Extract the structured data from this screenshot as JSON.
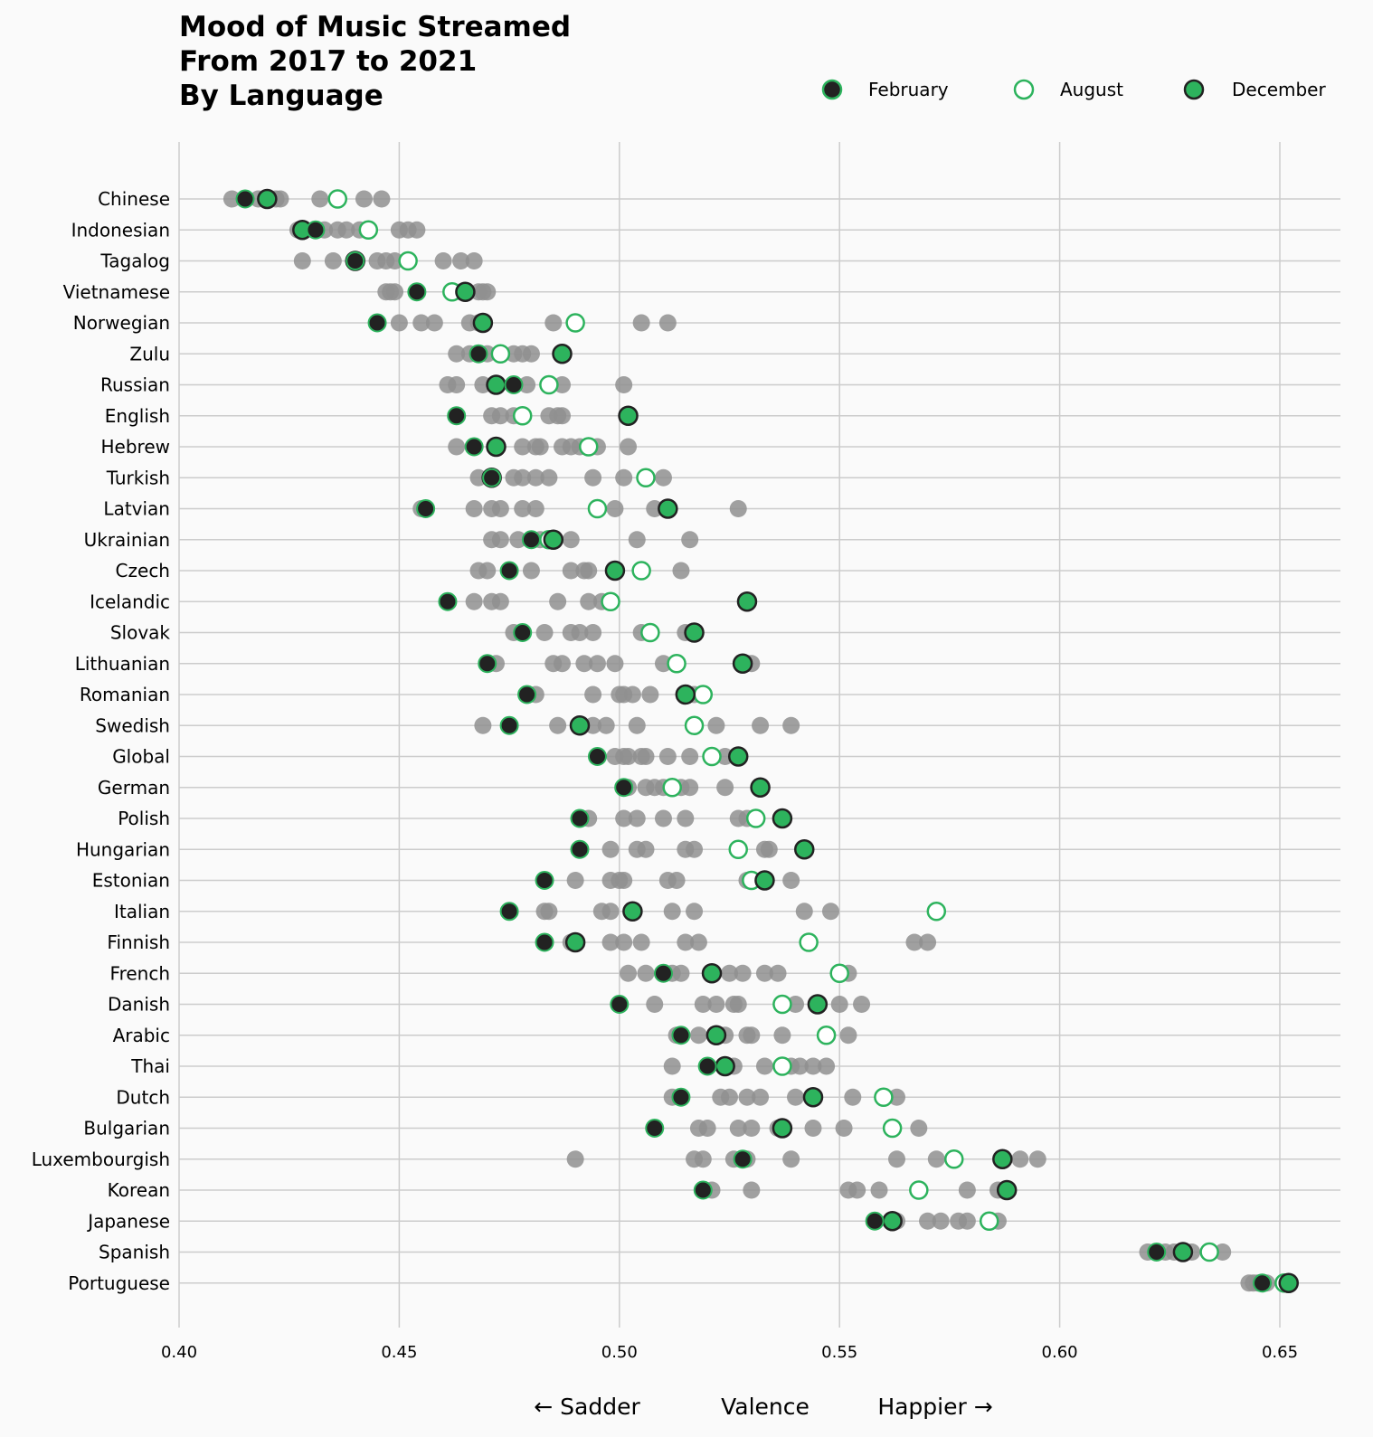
{
  "chart_data": {
    "type": "scatter",
    "title": [
      "Mood of Music Streamed",
      "From 2017 to 2021",
      "By Language"
    ],
    "xlabel": [
      "← Sadder",
      "Valence",
      "Happier →"
    ],
    "xlim": [
      0.4,
      0.665
    ],
    "xticks": [
      "0.40",
      "0.45",
      "0.50",
      "0.55",
      "0.60",
      "0.65"
    ],
    "xtick_values": [
      0.4,
      0.45,
      0.5,
      0.55,
      0.6,
      0.65
    ],
    "grid": true,
    "legend_position": "top-right",
    "legend": [
      {
        "name": "February",
        "style": "dark-fill-green-edge"
      },
      {
        "name": "August",
        "style": "hollow-green"
      },
      {
        "name": "December",
        "style": "green-fill-dark-edge"
      }
    ],
    "colors": {
      "green": "#2db35d",
      "dark": "#222222",
      "gray": "#8f8f8f",
      "grid": "#cccccc",
      "background": "#fafafa"
    },
    "languages": [
      {
        "name": "Chinese",
        "feb": 0.415,
        "aug": 0.436,
        "dec": 0.42,
        "others": [
          0.412,
          0.418,
          0.422,
          0.423,
          0.432,
          0.442,
          0.446
        ]
      },
      {
        "name": "Indonesian",
        "feb": 0.431,
        "aug": 0.443,
        "dec": 0.428,
        "others": [
          0.427,
          0.433,
          0.436,
          0.438,
          0.441,
          0.45,
          0.452,
          0.454
        ]
      },
      {
        "name": "Tagalog",
        "feb": 0.44,
        "aug": 0.452,
        "dec": 0.44,
        "others": [
          0.428,
          0.435,
          0.445,
          0.447,
          0.449,
          0.46,
          0.464,
          0.467
        ]
      },
      {
        "name": "Vietnamese",
        "feb": 0.454,
        "aug": 0.462,
        "dec": 0.465,
        "others": [
          0.447,
          0.448,
          0.449,
          0.464,
          0.468,
          0.469,
          0.47
        ]
      },
      {
        "name": "Norwegian",
        "feb": 0.445,
        "aug": 0.49,
        "dec": 0.469,
        "others": [
          0.45,
          0.455,
          0.458,
          0.466,
          0.468,
          0.485,
          0.505,
          0.511
        ]
      },
      {
        "name": "Zulu",
        "feb": 0.468,
        "aug": 0.473,
        "dec": 0.487,
        "others": [
          0.463,
          0.466,
          0.47,
          0.476,
          0.478,
          0.48
        ]
      },
      {
        "name": "Russian",
        "feb": 0.476,
        "aug": 0.484,
        "dec": 0.472,
        "others": [
          0.461,
          0.463,
          0.469,
          0.479,
          0.487,
          0.501
        ]
      },
      {
        "name": "English",
        "feb": 0.463,
        "aug": 0.478,
        "dec": 0.502,
        "others": [
          0.471,
          0.473,
          0.476,
          0.484,
          0.486,
          0.487
        ]
      },
      {
        "name": "Hebrew",
        "feb": 0.467,
        "aug": 0.493,
        "dec": 0.472,
        "others": [
          0.463,
          0.478,
          0.481,
          0.482,
          0.487,
          0.489,
          0.491,
          0.495,
          0.502
        ]
      },
      {
        "name": "Turkish",
        "feb": 0.471,
        "aug": 0.506,
        "dec": 0.471,
        "others": [
          0.468,
          0.476,
          0.478,
          0.481,
          0.484,
          0.494,
          0.501,
          0.51
        ]
      },
      {
        "name": "Latvian",
        "feb": 0.456,
        "aug": 0.495,
        "dec": 0.511,
        "others": [
          0.455,
          0.467,
          0.471,
          0.473,
          0.478,
          0.481,
          0.499,
          0.508,
          0.527
        ]
      },
      {
        "name": "Ukrainian",
        "feb": 0.48,
        "aug": 0.484,
        "dec": 0.485,
        "others": [
          0.471,
          0.473,
          0.477,
          0.482,
          0.489,
          0.504,
          0.516
        ]
      },
      {
        "name": "Czech",
        "feb": 0.475,
        "aug": 0.505,
        "dec": 0.499,
        "others": [
          0.468,
          0.47,
          0.48,
          0.489,
          0.492,
          0.493,
          0.514
        ]
      },
      {
        "name": "Icelandic",
        "feb": 0.461,
        "aug": 0.498,
        "dec": 0.529,
        "others": [
          0.467,
          0.471,
          0.473,
          0.486,
          0.493,
          0.496
        ]
      },
      {
        "name": "Slovak",
        "feb": 0.478,
        "aug": 0.507,
        "dec": 0.517,
        "others": [
          0.476,
          0.483,
          0.489,
          0.491,
          0.494,
          0.505,
          0.515
        ]
      },
      {
        "name": "Lithuanian",
        "feb": 0.47,
        "aug": 0.513,
        "dec": 0.528,
        "others": [
          0.472,
          0.485,
          0.487,
          0.492,
          0.495,
          0.499,
          0.51,
          0.53
        ]
      },
      {
        "name": "Romanian",
        "feb": 0.479,
        "aug": 0.519,
        "dec": 0.515,
        "others": [
          0.481,
          0.494,
          0.5,
          0.501,
          0.503,
          0.507,
          0.517
        ]
      },
      {
        "name": "Swedish",
        "feb": 0.475,
        "aug": 0.517,
        "dec": 0.491,
        "others": [
          0.469,
          0.486,
          0.494,
          0.497,
          0.504,
          0.522,
          0.532,
          0.539
        ]
      },
      {
        "name": "Global",
        "feb": 0.495,
        "aug": 0.521,
        "dec": 0.527,
        "others": [
          0.499,
          0.501,
          0.502,
          0.505,
          0.506,
          0.511,
          0.516,
          0.524
        ]
      },
      {
        "name": "German",
        "feb": 0.501,
        "aug": 0.512,
        "dec": 0.532,
        "others": [
          0.502,
          0.506,
          0.508,
          0.51,
          0.514,
          0.516,
          0.524
        ]
      },
      {
        "name": "Polish",
        "feb": 0.491,
        "aug": 0.531,
        "dec": 0.537,
        "others": [
          0.493,
          0.501,
          0.504,
          0.51,
          0.515,
          0.527,
          0.529
        ]
      },
      {
        "name": "Hungarian",
        "feb": 0.491,
        "aug": 0.527,
        "dec": 0.542,
        "others": [
          0.498,
          0.504,
          0.506,
          0.515,
          0.517,
          0.533,
          0.534
        ]
      },
      {
        "name": "Estonian",
        "feb": 0.483,
        "aug": 0.53,
        "dec": 0.533,
        "others": [
          0.49,
          0.498,
          0.5,
          0.501,
          0.511,
          0.513,
          0.529,
          0.539
        ]
      },
      {
        "name": "Italian",
        "feb": 0.475,
        "aug": 0.572,
        "dec": 0.503,
        "others": [
          0.483,
          0.484,
          0.496,
          0.498,
          0.512,
          0.517,
          0.542,
          0.548,
          0.572
        ]
      },
      {
        "name": "Finnish",
        "feb": 0.483,
        "aug": 0.543,
        "dec": 0.49,
        "others": [
          0.489,
          0.498,
          0.501,
          0.505,
          0.515,
          0.518,
          0.567,
          0.57
        ]
      },
      {
        "name": "French",
        "feb": 0.51,
        "aug": 0.55,
        "dec": 0.521,
        "others": [
          0.502,
          0.506,
          0.512,
          0.514,
          0.525,
          0.528,
          0.533,
          0.536,
          0.552
        ]
      },
      {
        "name": "Danish",
        "feb": 0.5,
        "aug": 0.537,
        "dec": 0.545,
        "others": [
          0.508,
          0.519,
          0.522,
          0.526,
          0.527,
          0.54,
          0.55,
          0.555
        ]
      },
      {
        "name": "Arabic",
        "feb": 0.514,
        "aug": 0.547,
        "dec": 0.522,
        "others": [
          0.513,
          0.518,
          0.524,
          0.529,
          0.53,
          0.537,
          0.552
        ]
      },
      {
        "name": "Thai",
        "feb": 0.52,
        "aug": 0.537,
        "dec": 0.524,
        "others": [
          0.512,
          0.526,
          0.533,
          0.539,
          0.541,
          0.544,
          0.547
        ]
      },
      {
        "name": "Dutch",
        "feb": 0.514,
        "aug": 0.56,
        "dec": 0.544,
        "others": [
          0.512,
          0.523,
          0.525,
          0.529,
          0.532,
          0.54,
          0.553,
          0.563
        ]
      },
      {
        "name": "Bulgarian",
        "feb": 0.508,
        "aug": 0.562,
        "dec": 0.537,
        "others": [
          0.518,
          0.52,
          0.527,
          0.53,
          0.536,
          0.544,
          0.551,
          0.568
        ]
      },
      {
        "name": "Luxembourgish",
        "feb": 0.528,
        "aug": 0.576,
        "dec": 0.587,
        "others": [
          0.49,
          0.517,
          0.519,
          0.526,
          0.529,
          0.539,
          0.563,
          0.572,
          0.591,
          0.595
        ]
      },
      {
        "name": "Korean",
        "feb": 0.519,
        "aug": 0.568,
        "dec": 0.588,
        "others": [
          0.521,
          0.53,
          0.552,
          0.554,
          0.559,
          0.579,
          0.586
        ]
      },
      {
        "name": "Japanese",
        "feb": 0.558,
        "aug": 0.584,
        "dec": 0.562,
        "others": [
          0.563,
          0.57,
          0.573,
          0.577,
          0.579,
          0.586
        ]
      },
      {
        "name": "Spanish",
        "feb": 0.622,
        "aug": 0.634,
        "dec": 0.628,
        "others": [
          0.62,
          0.624,
          0.626,
          0.63,
          0.637
        ]
      },
      {
        "name": "Portuguese",
        "feb": 0.646,
        "aug": 0.651,
        "dec": 0.652,
        "others": [
          0.643,
          0.644,
          0.645,
          0.647
        ]
      }
    ]
  }
}
